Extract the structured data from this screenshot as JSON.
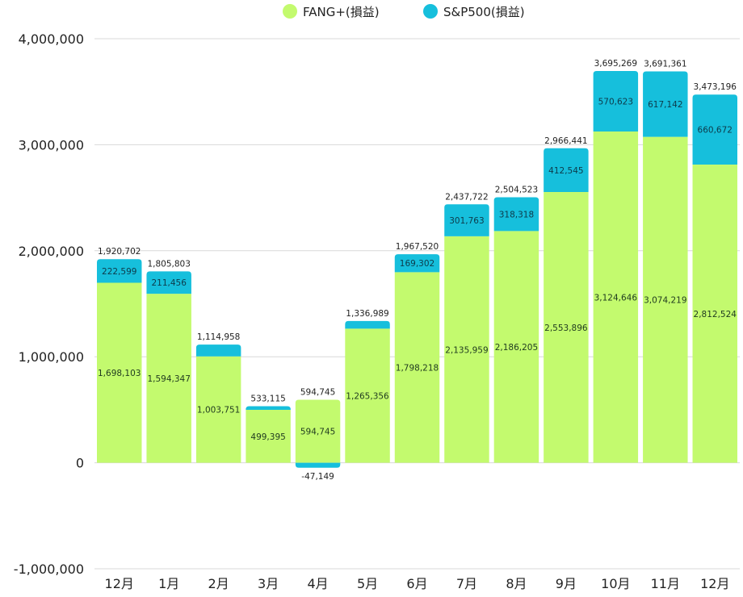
{
  "chart_data": {
    "type": "bar",
    "stacked": true,
    "title": "",
    "xlabel": "",
    "ylabel": "",
    "ylim": [
      -1000000,
      4000000
    ],
    "yticks": [
      -1000000,
      0,
      1000000,
      2000000,
      3000000,
      4000000
    ],
    "ytick_labels": [
      "-1,000,000",
      "0",
      "1,000,000",
      "2,000,000",
      "3,000,000",
      "4,000,000"
    ],
    "grid": true,
    "legend_position": "top-center",
    "categories": [
      "12月",
      "1月",
      "2月",
      "3月",
      "4月",
      "5月",
      "6月",
      "7月",
      "8月",
      "9月",
      "10月",
      "11月",
      "12月"
    ],
    "series": [
      {
        "name": "FANG+(損益)",
        "color": "#c3fa6e",
        "values": [
          1698103,
          1594347,
          1003751,
          499395,
          594745,
          1265356,
          1798218,
          2135959,
          2186205,
          2553896,
          3124646,
          3074219,
          2812524
        ],
        "labels": [
          "1,698,103",
          "1,594,347",
          "1,003,751",
          "499,395",
          "594,745",
          "1,265,356",
          "1,798,218",
          "2,135,959",
          "2,186,205",
          "2,553,896",
          "3,124,646",
          "3,074,219",
          "2,812,524"
        ]
      },
      {
        "name": "S&P500(損益)",
        "color": "#16bfdc",
        "values": [
          222599,
          211456,
          111207,
          33720,
          -47149,
          71633,
          169302,
          301763,
          318318,
          412545,
          570623,
          617142,
          660672
        ],
        "labels": [
          "222,599",
          "211,456",
          "",
          "",
          "-47,149",
          "",
          "169,302",
          "301,763",
          "318,318",
          "412,545",
          "570,623",
          "617,142",
          "660,672"
        ]
      }
    ],
    "totals": [
      "1,920,702",
      "1,805,803",
      "1,114,958",
      "533,115",
      "594,745",
      "1,336,989",
      "1,967,520",
      "2,437,722",
      "2,504,523",
      "2,966,441",
      "3,695,269",
      "3,691,361",
      "3,473,196"
    ],
    "total_values": [
      1920702,
      1805803,
      1114958,
      533115,
      594745,
      1336989,
      1967520,
      2437722,
      2504523,
      2966441,
      3695269,
      3691361,
      3473196
    ]
  }
}
